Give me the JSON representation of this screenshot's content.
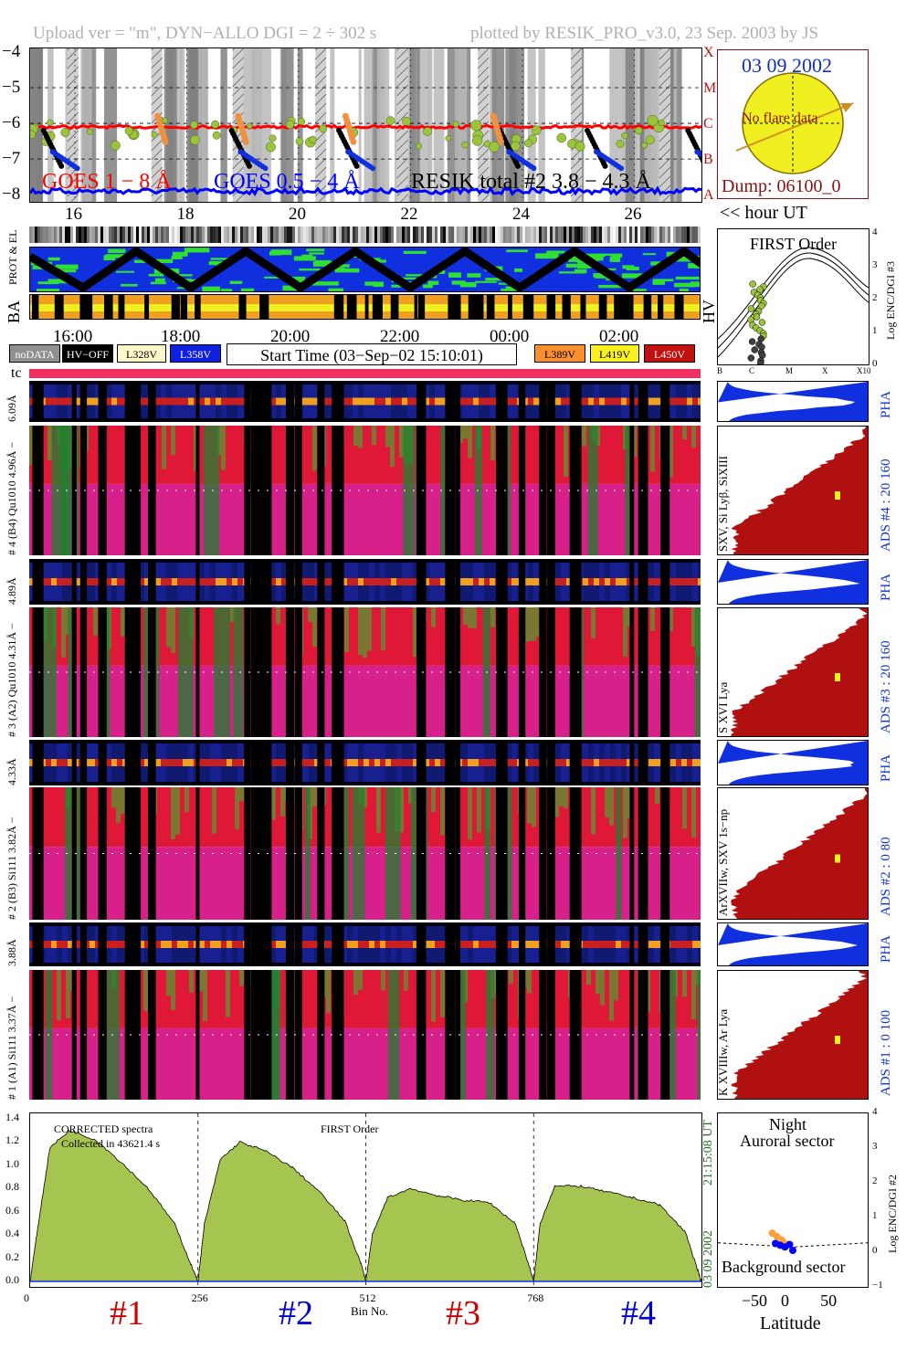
{
  "header": {
    "left": "Upload ver = \"m\", DYN−ALLO DGI =   2 ÷ 302 s",
    "right": "plotted by RESIK_PRO_v3.0, 23 Sep. 2003 by JS"
  },
  "goes": {
    "legend_goes1": "GOES 1 − 8 Å",
    "legend_goes05": "GOES 0.5 − 4 Å",
    "legend_resik": "RESIK total #2  3.8 − 4.3 Å",
    "y_ticks": [
      "−4",
      "−5",
      "−6",
      "−7",
      "−8"
    ],
    "class_letters": [
      "X",
      "M",
      "C",
      "B",
      "A"
    ],
    "x_ticks": [
      "16",
      "18",
      "20",
      "22",
      "24",
      "26"
    ],
    "x_unit": "<< hour UT",
    "colors": {
      "goes1": "#ff0000",
      "goes05": "#0000ff",
      "resik": "#000000",
      "fit": "#9ac43c"
    }
  },
  "sun_panel": {
    "date": "03 09 2002",
    "message": "No flare data",
    "dump": "Dump: 06100_0"
  },
  "orbit": {
    "label_top": "PROT & EL",
    "label_ba": "BA",
    "label_hv": "HV",
    "time_ticks": [
      "16:00",
      "18:00",
      "20:00",
      "22:00",
      "00:00",
      "02:00"
    ]
  },
  "legend": {
    "nodata": "noDATA",
    "hvoff": "HV−OFF",
    "l328": "L328V",
    "l358": "L358V",
    "start_time": "Start Time (03−Sep−02 15:10:01)",
    "l389": "L389V",
    "l419": "L419V",
    "l450": "L450V"
  },
  "first_order": {
    "title": "FIRST Order",
    "y_label": "Log ENC/DGI #3",
    "y_ticks": [
      "4",
      "3",
      "2",
      "1",
      "0"
    ],
    "x_ticks": [
      "B",
      "C",
      "M",
      "X",
      "X10"
    ]
  },
  "tc_label": "tc",
  "channels": [
    {
      "pha_label": "6.09Å",
      "main_label": "# 4 (B4) Qu1010  4.96Å −",
      "lines": "SXV, Si Lyβ, SiXIII",
      "ads": "ADS #4 :    20  160",
      "pha": "PHA"
    },
    {
      "pha_label": "4.89Å",
      "main_label": "# 3 (A2) Qu1010  4.31Å −",
      "lines": "S XVI Lya",
      "ads": "ADS #3 :    20  160",
      "pha": "PHA"
    },
    {
      "pha_label": "4.33Å",
      "main_label": "# 2 (B3) Si111  3.82Å −",
      "lines": "ArXVIIw, SXV 1s−np",
      "ads": "ADS #2 :     0   80",
      "pha": "PHA"
    },
    {
      "pha_label": "3.88Å",
      "main_label": "# 1 (A1) Si111  3.37Å −",
      "lines": "K XVIIIw, Ar Lya",
      "ads": "ADS #1 :     0  100",
      "pha": "PHA"
    }
  ],
  "spectra": {
    "text1": "CORRECTED spectra",
    "text2": "Collected in 43621.4 s",
    "text3": "FIRST Order",
    "y_ticks": [
      "1.4",
      "1.2",
      "1.0",
      "0.8",
      "0.6",
      "0.4",
      "0.2",
      "0.0"
    ],
    "x_ticks": [
      "0",
      "256",
      "512",
      "768"
    ],
    "x_label": "Bin No.",
    "date_vertical": "03 09 2002",
    "time_vertical": "21:15:08 UT",
    "channel_labels": [
      "#1",
      "#2",
      "#3",
      "#4"
    ],
    "channel_colors": [
      "#cc0000",
      "#0000cc",
      "#cc0000",
      "#0000cc"
    ],
    "fill": "#a6c450"
  },
  "latitude": {
    "title1": "Night",
    "title2": "Auroral sector",
    "bottom": "Background sector",
    "x_label": "Latitude",
    "x_ticks": [
      "−50",
      "0",
      "50"
    ],
    "y_label": "Log ENC/DGI #2",
    "y_ticks": [
      "4",
      "3",
      "2",
      "1",
      "0",
      "−1"
    ]
  },
  "chart_data": [
    {
      "type": "line",
      "title": "",
      "xlabel": "<< hour UT",
      "ylabel": "",
      "x_ticks": [
        16,
        18,
        20,
        22,
        24,
        26
      ],
      "xlim": [
        15.2,
        27.2
      ],
      "ylim": [
        -8.2,
        -3.9
      ],
      "series": [
        {
          "name": "GOES 1 − 8 Å",
          "approx_level": -6.1
        },
        {
          "name": "GOES 0.5 − 4 Å",
          "approx_level": -7.9
        },
        {
          "name": "RESIK total #2  3.8 − 4.3 Å",
          "approx_level": -6.5
        }
      ]
    },
    {
      "type": "area",
      "title": "",
      "xlabel": "Bin No.",
      "ylabel": "",
      "x_ticks": [
        0,
        256,
        512,
        768
      ],
      "xlim": [
        0,
        1024
      ],
      "ylim": [
        0,
        1.4
      ],
      "series": [
        {
          "name": "#1",
          "x": [
            0,
            10,
            30,
            60,
            100,
            140,
            180,
            220,
            245,
            256
          ],
          "y": [
            0.0,
            0.4,
            1.15,
            1.3,
            1.22,
            1.02,
            0.8,
            0.5,
            0.15,
            0.0
          ]
        },
        {
          "name": "#2",
          "x": [
            256,
            266,
            290,
            320,
            360,
            400,
            440,
            480,
            505,
            512
          ],
          "y": [
            0.0,
            0.5,
            1.05,
            1.2,
            1.12,
            0.98,
            0.78,
            0.52,
            0.15,
            0.0
          ]
        },
        {
          "name": "#3",
          "x": [
            512,
            522,
            545,
            580,
            620,
            660,
            700,
            740,
            762,
            768
          ],
          "y": [
            0.0,
            0.4,
            0.72,
            0.8,
            0.74,
            0.7,
            0.68,
            0.5,
            0.12,
            0.0
          ]
        },
        {
          "name": "#4",
          "x": [
            768,
            778,
            800,
            840,
            880,
            920,
            960,
            1000,
            1018,
            1024
          ],
          "y": [
            0.0,
            0.5,
            0.82,
            0.82,
            0.77,
            0.72,
            0.66,
            0.42,
            0.1,
            0.0
          ]
        }
      ]
    },
    {
      "type": "scatter",
      "title": "",
      "xlabel": "Latitude",
      "ylabel": "Log ENC/DGI #2",
      "xlim": [
        -95,
        95
      ],
      "ylim": [
        -1,
        4
      ],
      "series": [
        {
          "name": "",
          "color": "#ffa040",
          "x": [
            -26,
            -20,
            -14,
            -10
          ],
          "y": [
            0.55,
            0.45,
            0.35,
            0.25
          ]
        },
        {
          "name": "",
          "color": "#0000ff",
          "x": [
            -22,
            -16,
            -10,
            -4,
            0
          ],
          "y": [
            0.25,
            0.2,
            0.15,
            0.22,
            0.05
          ]
        }
      ]
    }
  ]
}
